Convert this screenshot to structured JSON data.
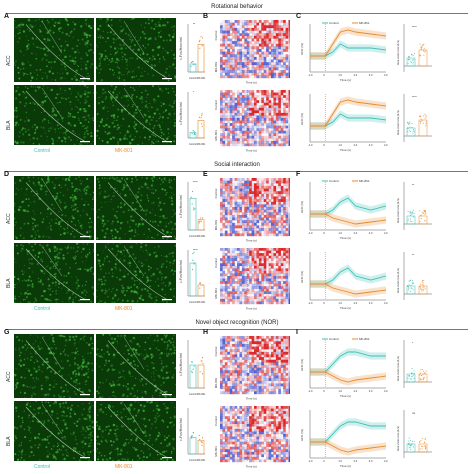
{
  "colors": {
    "control": "#3ebfb6",
    "mk801": "#e98a2e",
    "green_bg": "#0a3a08",
    "green_fg": "#3fae3a"
  },
  "sections": [
    {
      "title": "Rotational behavior",
      "panels": [
        "A",
        "B",
        "C"
      ]
    },
    {
      "title": "Social interaction",
      "panels": [
        "D",
        "E",
        "F"
      ]
    },
    {
      "title": "Novel object recognition (NOR)",
      "panels": [
        "G",
        "H",
        "I"
      ]
    }
  ],
  "regions": {
    "acc": "ACC",
    "bla": "BLA"
  },
  "groups": {
    "control": "Control",
    "mk801": "MK-801"
  },
  "stain_label": "c-Fos/Hoechst",
  "bar_axis": {
    "ylabel": "Density (mm²)",
    "x1": "Control",
    "x2": "MK-801"
  },
  "heat_axis": {
    "xlabel": "Time (s)",
    "row1": "Control",
    "row2": "MK-801",
    "ticks": [
      "-2.0",
      "0",
      "2.0"
    ]
  },
  "trace_axis": {
    "ylabel": "ΔF/F (%)",
    "xlabel": "Time (s)",
    "xticks": [
      "-1.0",
      "0",
      "1.0",
      "2.0",
      "3.0",
      "4.0"
    ]
  },
  "auc_axis": {
    "ylabel": "Area under curve (Δ-fo)"
  },
  "sig": {
    "a1": "**",
    "a2": "*",
    "d1": "****",
    "d2": "****",
    "g1": "",
    "g2": "",
    "c1": "****",
    "c2": "****",
    "f1": "**",
    "f2": "**",
    "i1": "*",
    "i2": "ns"
  },
  "chart_data": [
    {
      "type": "bar",
      "panel": "A",
      "region": "ACC",
      "categories": [
        "Control",
        "MK-801"
      ],
      "values": [
        14,
        48
      ]
    },
    {
      "type": "bar",
      "panel": "A",
      "region": "BLA",
      "categories": [
        "Control",
        "MK-801"
      ],
      "values": [
        10,
        32
      ]
    },
    {
      "type": "bar",
      "panel": "D",
      "region": "ACC",
      "categories": [
        "Control",
        "MK-801"
      ],
      "values": [
        55,
        18
      ]
    },
    {
      "type": "bar",
      "panel": "D",
      "region": "BLA",
      "categories": [
        "Control",
        "MK-801"
      ],
      "values": [
        60,
        20
      ]
    },
    {
      "type": "bar",
      "panel": "G",
      "region": "ACC",
      "categories": [
        "Control",
        "MK-801"
      ],
      "values": [
        40,
        40
      ]
    },
    {
      "type": "bar",
      "panel": "G",
      "region": "BLA",
      "categories": [
        "Control",
        "MK-801"
      ],
      "values": [
        30,
        25
      ]
    },
    {
      "type": "line",
      "panel": "C",
      "x": [
        -1,
        0,
        0.5,
        1,
        1.5,
        2,
        3,
        4
      ],
      "series": [
        {
          "name": "Control",
          "values": [
            0,
            0,
            1,
            3,
            2,
            2,
            2,
            1.5
          ]
        },
        {
          "name": "MK-801",
          "values": [
            0,
            0,
            3,
            6,
            6.5,
            6,
            5.5,
            5
          ]
        }
      ]
    },
    {
      "type": "line",
      "panel": "F",
      "x": [
        -1,
        0,
        0.5,
        1,
        1.5,
        2,
        3,
        4
      ],
      "series": [
        {
          "name": "Control",
          "values": [
            0,
            0,
            1,
            3,
            4,
            2,
            1,
            2
          ]
        },
        {
          "name": "MK-801",
          "values": [
            0,
            0,
            -1,
            -1.5,
            -2,
            -2.5,
            -2,
            -1.5
          ]
        }
      ]
    },
    {
      "type": "line",
      "panel": "I",
      "x": [
        -1,
        0,
        0.5,
        1,
        1.5,
        2,
        3,
        4
      ],
      "series": [
        {
          "name": "Control",
          "values": [
            0,
            0,
            2,
            4,
            5,
            5,
            4,
            4
          ]
        },
        {
          "name": "MK-801",
          "values": [
            0,
            0,
            -1,
            -2,
            -2.5,
            -2,
            -1.5,
            -1
          ]
        }
      ]
    }
  ]
}
